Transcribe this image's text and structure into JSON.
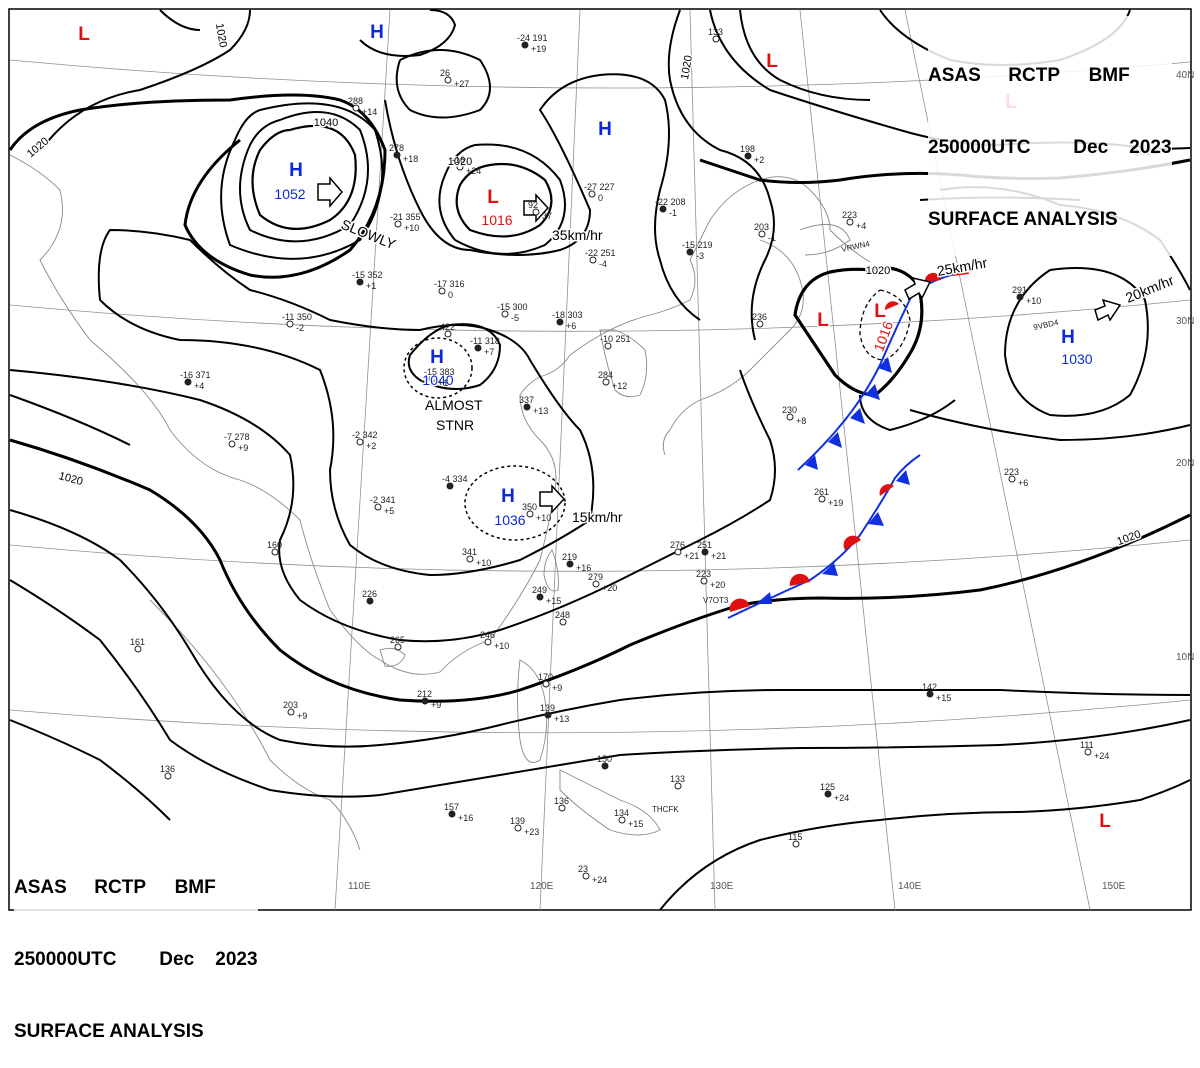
{
  "header": {
    "agency_line": [
      "ASAS",
      "RCTP",
      "BMF"
    ],
    "time_line": [
      "250000UTC",
      "Dec",
      "2023"
    ],
    "product": "SURFACE ANALYSIS"
  },
  "colors": {
    "high": "#0a2ad8",
    "low": "#e01010",
    "warm_front": "#e01010",
    "cold_front": "#1030e0",
    "isobar": "#000000",
    "geography": "#8a8a8a"
  },
  "pressure_centers": [
    {
      "type": "H",
      "value": "1052",
      "note": "SLOWLY"
    },
    {
      "type": "L",
      "value": "1016",
      "note": "35km/hr"
    },
    {
      "type": "H",
      "value": "1040",
      "note": "ALMOST STNR"
    },
    {
      "type": "H",
      "value": "1036",
      "note": "15km/hr"
    },
    {
      "type": "L",
      "value": "1016",
      "note": "25km/hr"
    },
    {
      "type": "H",
      "value": "1030",
      "note": "20km/hr"
    },
    {
      "type": "H",
      "value": ""
    },
    {
      "type": "H",
      "value": ""
    },
    {
      "type": "L",
      "value": ""
    },
    {
      "type": "L",
      "value": ""
    },
    {
      "type": "L",
      "value": ""
    },
    {
      "type": "L",
      "value": ""
    },
    {
      "type": "L",
      "value": ""
    }
  ],
  "isobar_labels": [
    "1020",
    "1040",
    "1020",
    "1020",
    "1020",
    "1020",
    "1020",
    "1020",
    "1020"
  ],
  "latitude_labels": [
    "40N",
    "30N",
    "20N",
    "10N"
  ],
  "longitude_labels": [
    "110E",
    "120E",
    "130E",
    "140E",
    "150E"
  ],
  "station_codes": [
    "VRWN4",
    "9VBD4",
    "V7OT3",
    "THCFK"
  ],
  "station_plots": [
    {
      "text": "-24  191",
      "sub": "+19"
    },
    {
      "text": "26",
      "sub": "+27"
    },
    {
      "text": "288",
      "sub": "+14"
    },
    {
      "text": "278",
      "sub": "+18"
    },
    {
      "text": "-16",
      "sub": "+24"
    },
    {
      "text": "-27  227",
      "sub": "0"
    },
    {
      "text": "-22  208",
      "sub": "-1"
    },
    {
      "text": "92",
      "sub": "37"
    },
    {
      "text": "-22  251",
      "sub": "-4"
    },
    {
      "text": "-15  219",
      "sub": "-3"
    },
    {
      "text": "203",
      "sub": "-1"
    },
    {
      "text": "-21  355",
      "sub": "+10"
    },
    {
      "text": "-15  352",
      "sub": "+1"
    },
    {
      "text": "-17  316",
      "sub": "0"
    },
    {
      "text": "-15  300",
      "sub": "-5"
    },
    {
      "text": "-18  303",
      "sub": "+6"
    },
    {
      "text": "-11  350",
      "sub": "-2"
    },
    {
      "text": "422",
      "sub": ""
    },
    {
      "text": "-11  318",
      "sub": "+7"
    },
    {
      "text": "-10  251",
      "sub": ""
    },
    {
      "text": "-15  383",
      "sub": "+1"
    },
    {
      "text": "-16  371",
      "sub": "+4"
    },
    {
      "text": "-7  278",
      "sub": "+9"
    },
    {
      "text": "-2  342",
      "sub": "+2"
    },
    {
      "text": "337",
      "sub": "+13"
    },
    {
      "text": "284",
      "sub": "+12"
    },
    {
      "text": "-2  341",
      "sub": "+5"
    },
    {
      "text": "-4  334",
      "sub": ""
    },
    {
      "text": "350",
      "sub": "+10"
    },
    {
      "text": "341",
      "sub": "+10"
    },
    {
      "text": "219",
      "sub": "+16"
    },
    {
      "text": "279",
      "sub": "+20"
    },
    {
      "text": "276",
      "sub": "+21"
    },
    {
      "text": "251",
      "sub": "+21"
    },
    {
      "text": "223",
      "sub": "+20"
    },
    {
      "text": "248",
      "sub": ""
    },
    {
      "text": "249",
      "sub": "+15"
    },
    {
      "text": "246",
      "sub": "+10"
    },
    {
      "text": "265",
      "sub": ""
    },
    {
      "text": "226",
      "sub": ""
    },
    {
      "text": "160",
      "sub": ""
    },
    {
      "text": "203",
      "sub": "+9"
    },
    {
      "text": "212",
      "sub": "+9"
    },
    {
      "text": "161",
      "sub": ""
    },
    {
      "text": "136",
      "sub": ""
    },
    {
      "text": "157",
      "sub": "+16"
    },
    {
      "text": "139",
      "sub": "+23"
    },
    {
      "text": "170",
      "sub": "+9"
    },
    {
      "text": "139",
      "sub": "+13"
    },
    {
      "text": "136",
      "sub": ""
    },
    {
      "text": "23",
      "sub": "+24"
    },
    {
      "text": "150",
      "sub": ""
    },
    {
      "text": "134",
      "sub": "+15"
    },
    {
      "text": "133",
      "sub": ""
    },
    {
      "text": "125",
      "sub": "+24"
    },
    {
      "text": "115",
      "sub": ""
    },
    {
      "text": "111",
      "sub": "+24"
    },
    {
      "text": "142",
      "sub": "+15"
    },
    {
      "text": "261",
      "sub": "+19"
    },
    {
      "text": "223",
      "sub": "+6"
    },
    {
      "text": "291",
      "sub": "+10"
    },
    {
      "text": "223",
      "sub": "+4"
    },
    {
      "text": "230",
      "sub": "+8"
    },
    {
      "text": "198",
      "sub": "+2"
    },
    {
      "text": "236",
      "sub": ""
    },
    {
      "text": "133",
      "sub": ""
    }
  ]
}
